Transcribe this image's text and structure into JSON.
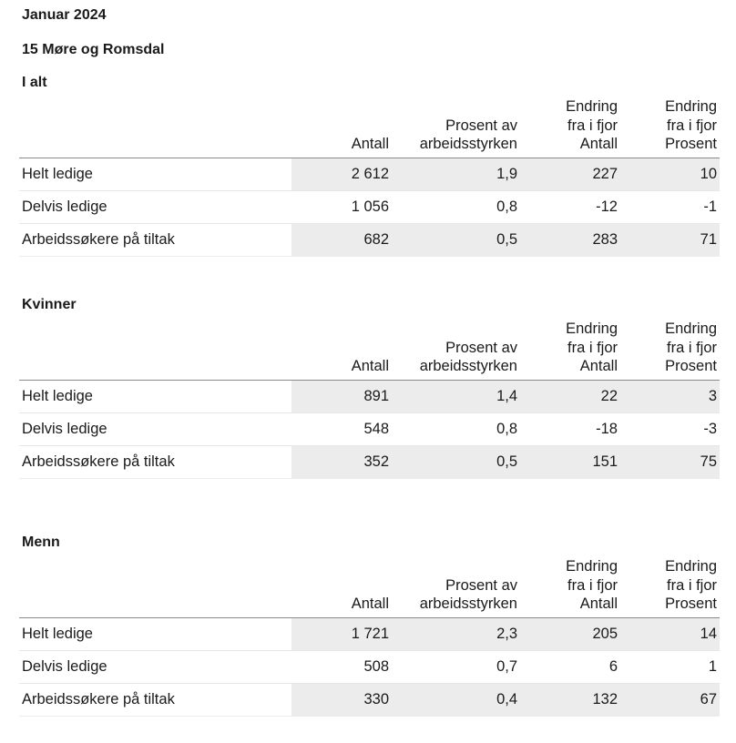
{
  "page": {
    "period": "Januar 2024",
    "region": "15 Møre og Romsdal"
  },
  "columns": {
    "antall": "Antall",
    "prosent_line1": "Prosent av",
    "prosent_line2": "arbeidsstyrken",
    "endring_antall_line1": "Endring",
    "endring_antall_line2": "fra i fjor",
    "endring_antall_line3": "Antall",
    "endring_prosent_line1": "Endring",
    "endring_prosent_line2": "fra i fjor",
    "endring_prosent_line3": "Prosent"
  },
  "sections": [
    {
      "title": "I alt",
      "rows": [
        {
          "label": "Helt ledige",
          "antall": "2 612",
          "prosent": "1,9",
          "endring_antall": "227",
          "endring_prosent": "10"
        },
        {
          "label": "Delvis ledige",
          "antall": "1 056",
          "prosent": "0,8",
          "endring_antall": "-12",
          "endring_prosent": "-1"
        },
        {
          "label": "Arbeidssøkere på tiltak",
          "antall": "682",
          "prosent": "0,5",
          "endring_antall": "283",
          "endring_prosent": "71"
        }
      ]
    },
    {
      "title": "Kvinner",
      "rows": [
        {
          "label": "Helt ledige",
          "antall": "891",
          "prosent": "1,4",
          "endring_antall": "22",
          "endring_prosent": "3"
        },
        {
          "label": "Delvis ledige",
          "antall": "548",
          "prosent": "0,8",
          "endring_antall": "-18",
          "endring_prosent": "-3"
        },
        {
          "label": "Arbeidssøkere på tiltak",
          "antall": "352",
          "prosent": "0,5",
          "endring_antall": "151",
          "endring_prosent": "75"
        }
      ]
    },
    {
      "title": "Menn",
      "rows": [
        {
          "label": "Helt ledige",
          "antall": "1 721",
          "prosent": "2,3",
          "endring_antall": "205",
          "endring_prosent": "14"
        },
        {
          "label": "Delvis ledige",
          "antall": "508",
          "prosent": "0,7",
          "endring_antall": "6",
          "endring_prosent": "1"
        },
        {
          "label": "Arbeidssøkere på tiltak",
          "antall": "330",
          "prosent": "0,4",
          "endring_antall": "132",
          "endring_prosent": "67"
        }
      ]
    }
  ]
}
